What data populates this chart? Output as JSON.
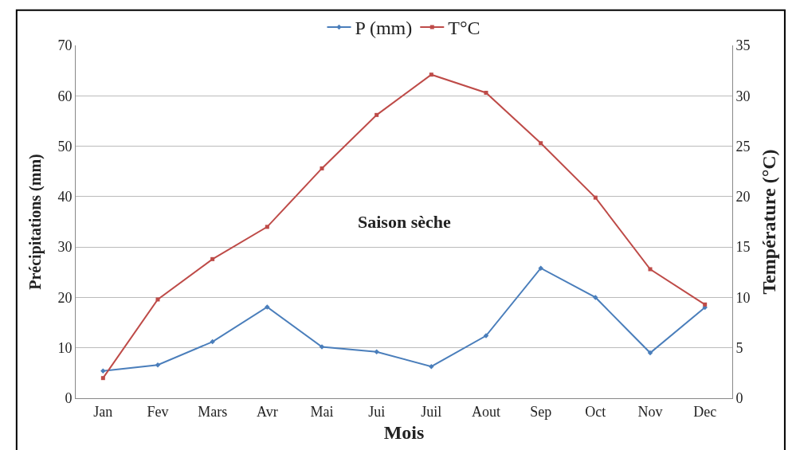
{
  "chart_data": {
    "type": "line",
    "categories": [
      "Jan",
      "Fev",
      "Mars",
      "Avr",
      "Mai",
      "Jui",
      "Juil",
      "Aout",
      "Sep",
      "Oct",
      "Nov",
      "Dec"
    ],
    "series": [
      {
        "name": "P (mm)",
        "color": "#4a7ebb",
        "marker": "diamond",
        "values": [
          5.4,
          6.6,
          11.2,
          18.1,
          10.2,
          9.2,
          6.3,
          12.4,
          25.8,
          20,
          9,
          18
        ]
      },
      {
        "name": "T°C",
        "color": "#be4b48",
        "marker": "square",
        "axis": "y2",
        "values": [
          2.0,
          9.8,
          13.8,
          17.0,
          22.8,
          28.1,
          32.1,
          30.3,
          25.3,
          19.9,
          12.8,
          9.3
        ]
      }
    ],
    "xlabel": "Mois",
    "ylabel": "Précipitations (mm)",
    "y2label": "Température (°C)",
    "ylim": [
      0,
      70
    ],
    "yticks": [
      0,
      10,
      20,
      30,
      40,
      50,
      60,
      70
    ],
    "y2lim": [
      0,
      35
    ],
    "y2ticks": [
      0,
      5,
      10,
      15,
      20,
      25,
      30,
      35
    ],
    "grid": "y",
    "legend": "top",
    "annotations": [
      "Saison sèche"
    ]
  }
}
